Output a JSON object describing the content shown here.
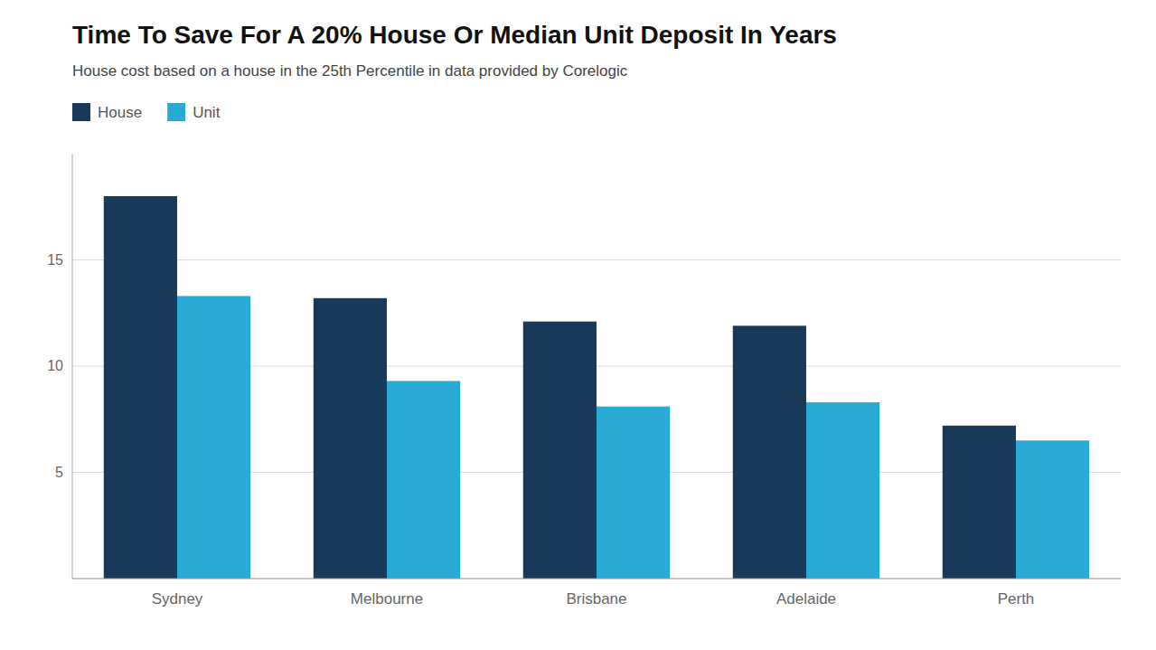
{
  "chart_data": {
    "type": "bar",
    "title": "Time To Save For A 20% House Or Median Unit Deposit In Years",
    "subtitle": "House cost based on a house in the 25th Percentile in data provided by Corelogic",
    "categories": [
      "Sydney",
      "Melbourne",
      "Brisbane",
      "Adelaide",
      "Perth"
    ],
    "series": [
      {
        "name": "House",
        "color": "#1a3a5c",
        "values": [
          18.0,
          13.2,
          12.1,
          11.9,
          7.2
        ]
      },
      {
        "name": "Unit",
        "color": "#29aad4",
        "values": [
          13.3,
          9.3,
          8.1,
          8.3,
          6.5
        ]
      }
    ],
    "ylim": [
      0,
      20
    ],
    "yticks": [
      5,
      10,
      15
    ],
    "grid": true,
    "legend": "top-left"
  }
}
